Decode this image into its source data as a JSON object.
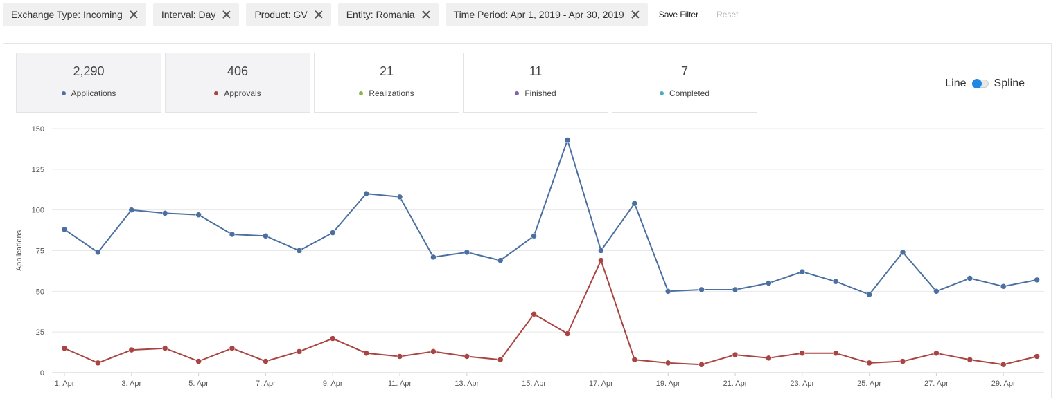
{
  "filters": [
    {
      "label": "Exchange Type: Incoming"
    },
    {
      "label": "Interval: Day"
    },
    {
      "label": "Product: GV"
    },
    {
      "label": "Entity: Romania"
    },
    {
      "label": "Time Period: Apr 1, 2019 - Apr 30, 2019"
    }
  ],
  "actions": {
    "save_label": "Save Filter",
    "reset_label": "Reset"
  },
  "cards": [
    {
      "value": "2,290",
      "label": "Applications",
      "color": "#4a6fa0",
      "active": true
    },
    {
      "value": "406",
      "label": "Approvals",
      "color": "#a94442",
      "active": true
    },
    {
      "value": "21",
      "label": "Realizations",
      "color": "#8ab44c",
      "active": false
    },
    {
      "value": "11",
      "label": "Finished",
      "color": "#8064a2",
      "active": false
    },
    {
      "value": "7",
      "label": "Completed",
      "color": "#4bacc6",
      "active": false
    }
  ],
  "toggle": {
    "left_label": "Line",
    "right_label": "Spline",
    "accent": "#1e88e5"
  },
  "chart_data": {
    "type": "line",
    "ylabel": "Applications",
    "ylim": [
      0,
      150
    ],
    "yticks": [
      0,
      25,
      50,
      75,
      100,
      125,
      150
    ],
    "x": [
      "1. Apr",
      "2. Apr",
      "3. Apr",
      "4. Apr",
      "5. Apr",
      "6. Apr",
      "7. Apr",
      "8. Apr",
      "9. Apr",
      "10. Apr",
      "11. Apr",
      "12. Apr",
      "13. Apr",
      "14. Apr",
      "15. Apr",
      "16. Apr",
      "17. Apr",
      "18. Apr",
      "19. Apr",
      "20. Apr",
      "21. Apr",
      "22. Apr",
      "23. Apr",
      "24. Apr",
      "25. Apr",
      "26. Apr",
      "27. Apr",
      "28. Apr",
      "29. Apr",
      "30. Apr"
    ],
    "xtick_labels": [
      "1. Apr",
      "3. Apr",
      "5. Apr",
      "7. Apr",
      "9. Apr",
      "11. Apr",
      "13. Apr",
      "15. Apr",
      "17. Apr",
      "19. Apr",
      "21. Apr",
      "23. Apr",
      "25. Apr",
      "27. Apr",
      "29. Apr"
    ],
    "grid": true,
    "series": [
      {
        "name": "Applications",
        "color": "#4a6fa0",
        "values": [
          88,
          74,
          100,
          98,
          97,
          85,
          84,
          75,
          86,
          110,
          108,
          71,
          74,
          69,
          84,
          143,
          75,
          104,
          50,
          51,
          51,
          55,
          62,
          56,
          48,
          74,
          50,
          58,
          53,
          57
        ]
      },
      {
        "name": "Approvals",
        "color": "#a94442",
        "values": [
          15,
          6,
          14,
          15,
          7,
          15,
          7,
          13,
          21,
          12,
          10,
          13,
          10,
          8,
          36,
          24,
          69,
          8,
          6,
          5,
          11,
          9,
          12,
          12,
          6,
          7,
          12,
          8,
          5,
          10
        ]
      }
    ]
  }
}
